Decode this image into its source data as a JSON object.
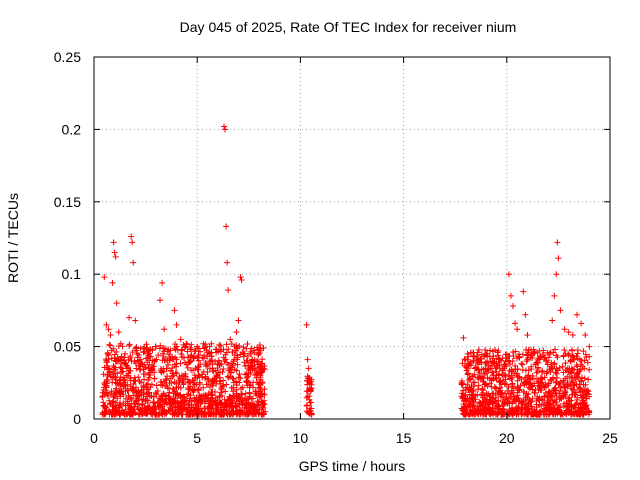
{
  "chart_data": {
    "type": "scatter",
    "title": "Day 045 of 2025, Rate Of TEC Index for receiver nium",
    "xlabel": "GPS time / hours",
    "ylabel": "ROTI / TECUs",
    "xlim": [
      0,
      25
    ],
    "ylim": [
      0,
      0.25
    ],
    "x_ticks": [
      0,
      5,
      10,
      15,
      20,
      25
    ],
    "x_tick_labels": [
      "0",
      "5",
      "10",
      "15",
      "20",
      "25"
    ],
    "y_ticks": [
      0,
      0.05,
      0.1,
      0.15,
      0.2,
      0.25
    ],
    "y_tick_labels": [
      "0",
      "0.05",
      "0.1",
      "0.15",
      "0.2",
      "0.25"
    ],
    "grid": true,
    "marker": "+",
    "color": "#ff0000",
    "points": [
      [
        0.5,
        0.098
      ],
      [
        0.6,
        0.065
      ],
      [
        0.7,
        0.062
      ],
      [
        0.8,
        0.058
      ],
      [
        0.9,
        0.094
      ],
      [
        0.95,
        0.122
      ],
      [
        1.0,
        0.115
      ],
      [
        1.05,
        0.112
      ],
      [
        1.1,
        0.08
      ],
      [
        1.2,
        0.06
      ],
      [
        1.3,
        0.052
      ],
      [
        1.5,
        0.045
      ],
      [
        1.7,
        0.07
      ],
      [
        1.8,
        0.126
      ],
      [
        1.85,
        0.122
      ],
      [
        1.9,
        0.108
      ],
      [
        2.0,
        0.068
      ],
      [
        2.1,
        0.045
      ],
      [
        2.4,
        0.046
      ],
      [
        2.6,
        0.045
      ],
      [
        3.0,
        0.05
      ],
      [
        3.2,
        0.082
      ],
      [
        3.3,
        0.094
      ],
      [
        3.4,
        0.062
      ],
      [
        3.6,
        0.048
      ],
      [
        3.9,
        0.075
      ],
      [
        4.0,
        0.065
      ],
      [
        4.2,
        0.055
      ],
      [
        4.5,
        0.052
      ],
      [
        4.7,
        0.048
      ],
      [
        5.0,
        0.05
      ],
      [
        5.3,
        0.052
      ],
      [
        5.6,
        0.05
      ],
      [
        5.9,
        0.048
      ],
      [
        6.3,
        0.202
      ],
      [
        6.35,
        0.2
      ],
      [
        6.4,
        0.133
      ],
      [
        6.45,
        0.108
      ],
      [
        6.5,
        0.089
      ],
      [
        6.6,
        0.055
      ],
      [
        6.8,
        0.05
      ],
      [
        6.9,
        0.06
      ],
      [
        7.0,
        0.068
      ],
      [
        7.1,
        0.098
      ],
      [
        7.15,
        0.096
      ],
      [
        7.3,
        0.045
      ],
      [
        7.6,
        0.045
      ],
      [
        7.9,
        0.04
      ],
      [
        8.1,
        0.038
      ],
      [
        8.2,
        0.035
      ],
      [
        10.3,
        0.065
      ],
      [
        10.35,
        0.041
      ],
      [
        10.4,
        0.035
      ],
      [
        10.45,
        0.025
      ],
      [
        10.5,
        0.02
      ],
      [
        17.9,
        0.056
      ],
      [
        18.1,
        0.045
      ],
      [
        18.4,
        0.04
      ],
      [
        18.6,
        0.046
      ],
      [
        18.9,
        0.043
      ],
      [
        19.2,
        0.04
      ],
      [
        19.5,
        0.038
      ],
      [
        19.8,
        0.042
      ],
      [
        20.1,
        0.1
      ],
      [
        20.2,
        0.085
      ],
      [
        20.3,
        0.078
      ],
      [
        20.4,
        0.066
      ],
      [
        20.5,
        0.062
      ],
      [
        20.8,
        0.088
      ],
      [
        20.9,
        0.072
      ],
      [
        21.0,
        0.058
      ],
      [
        21.3,
        0.048
      ],
      [
        21.6,
        0.042
      ],
      [
        21.9,
        0.04
      ],
      [
        22.2,
        0.068
      ],
      [
        22.3,
        0.085
      ],
      [
        22.4,
        0.1
      ],
      [
        22.45,
        0.122
      ],
      [
        22.5,
        0.111
      ],
      [
        22.6,
        0.075
      ],
      [
        22.8,
        0.062
      ],
      [
        23.0,
        0.06
      ],
      [
        23.2,
        0.058
      ],
      [
        23.4,
        0.072
      ],
      [
        23.6,
        0.066
      ],
      [
        23.8,
        0.058
      ],
      [
        24.0,
        0.05
      ]
    ],
    "dense_bands": [
      {
        "x": [
          0.4,
          8.3
        ],
        "y": [
          0.003,
          0.052
        ]
      },
      {
        "x": [
          10.3,
          10.55
        ],
        "y": [
          0.003,
          0.03
        ]
      },
      {
        "x": [
          17.8,
          24.0
        ],
        "y": [
          0.003,
          0.048
        ]
      }
    ]
  }
}
